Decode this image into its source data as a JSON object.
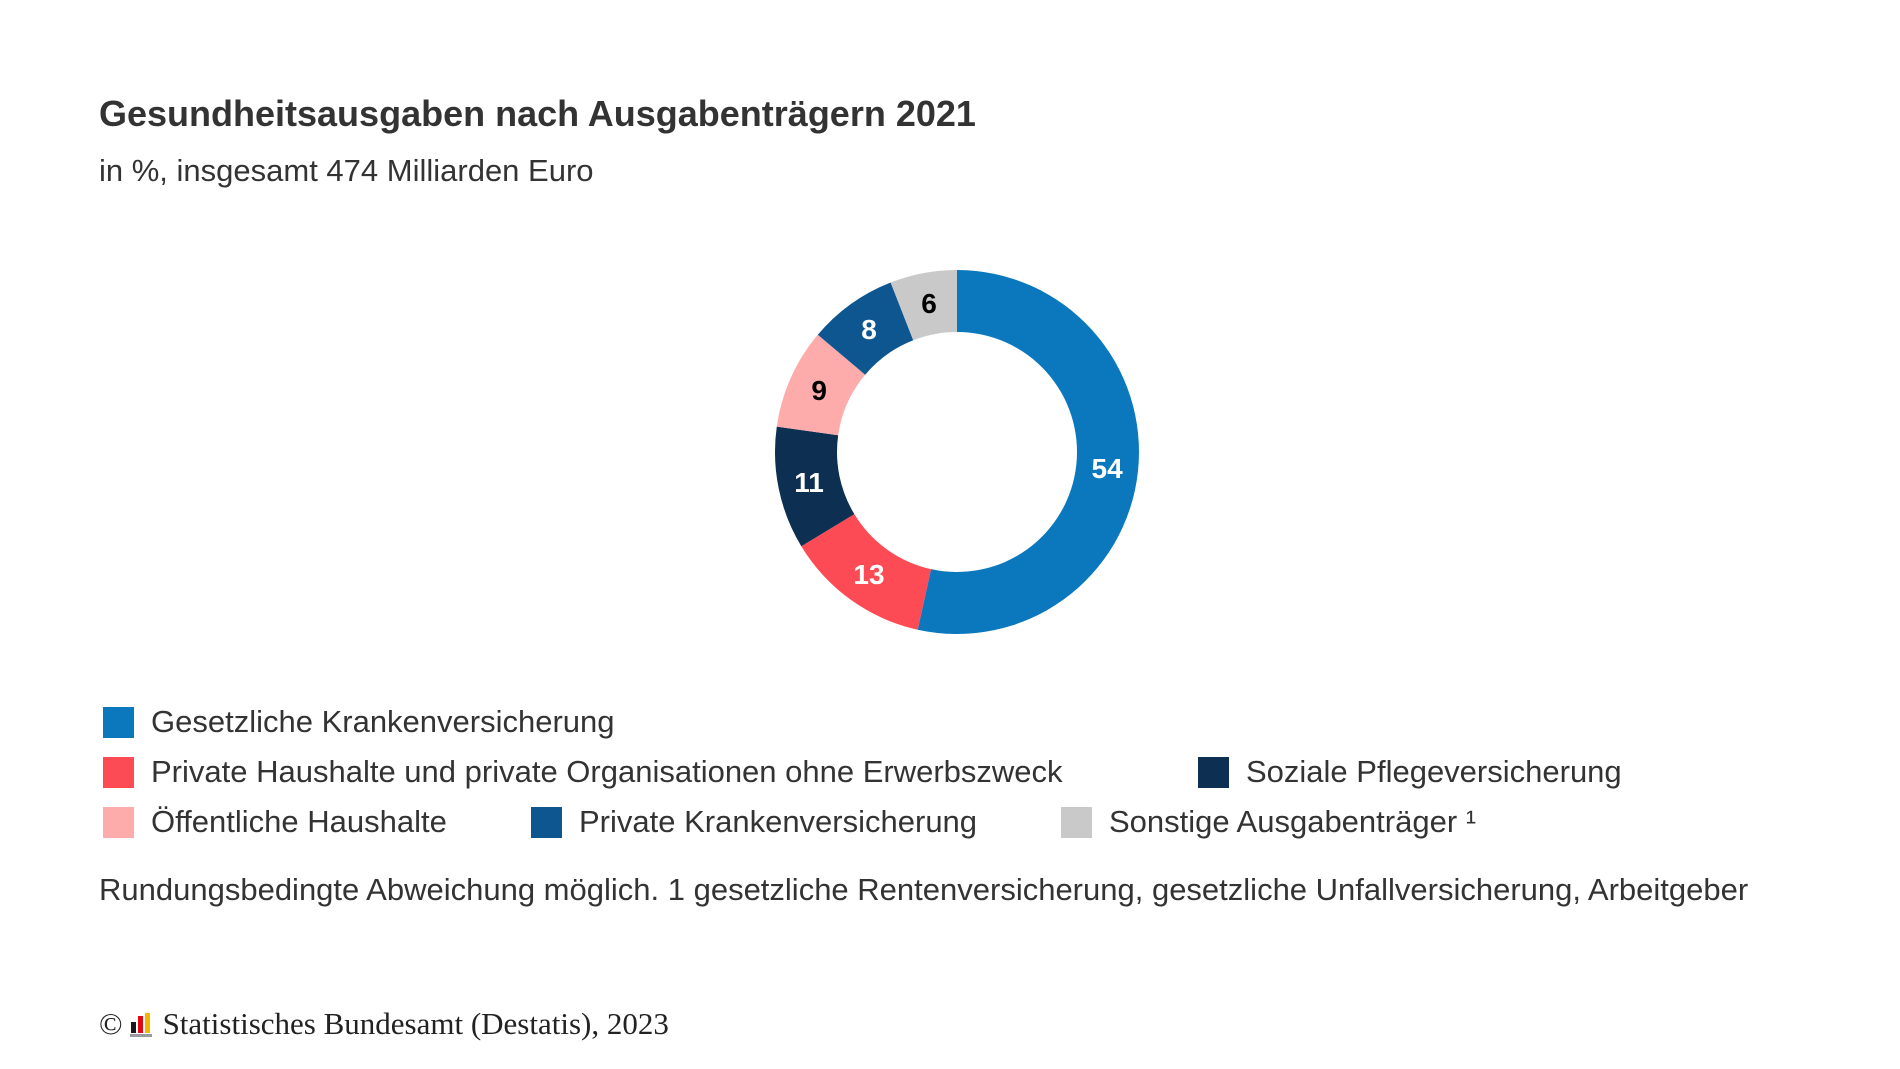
{
  "chart_data": {
    "type": "pie",
    "title": "Gesundheitsausgaben nach Ausgabenträgern 2021",
    "subtitle": "in %, insgesamt 474 Milliarden Euro",
    "categories": [
      "Gesetzliche Krankenversicherung",
      "Private Haushalte und private Organisationen ohne Erwerbszweck",
      "Soziale Pflegeversicherung",
      "Öffentliche Haushalte",
      "Private Krankenversicherung",
      "Sonstige Ausgabenträger ¹"
    ],
    "values": [
      54,
      13,
      11,
      9,
      8,
      6
    ],
    "colors": [
      "#0b78be",
      "#fd4b55",
      "#0c2f52",
      "#fdabab",
      "#0e568f",
      "#c9c9c9"
    ],
    "label_colors": [
      "#ffffff",
      "#ffffff",
      "#ffffff",
      "#000000",
      "#ffffff",
      "#000000"
    ],
    "donut": true,
    "legend_position": "bottom"
  },
  "footnote": "Rundungsbedingte Abweichung möglich. 1 gesetzliche Rentenversicherung, gesetzliche Unfallversicherung, Arbeitgeber",
  "source": {
    "copyright_symbol": "©",
    "text": "Statistisches Bundesamt (Destatis), 2023"
  }
}
